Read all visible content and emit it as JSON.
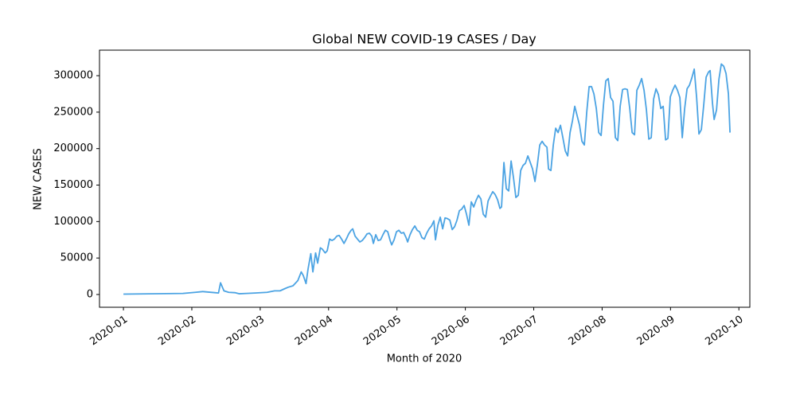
{
  "chart_data": {
    "type": "line",
    "title": "Global NEW COVID-19 CASES  / Day",
    "x_label": "Month of 2020",
    "y_label": "NEW CASES",
    "xlim": [
      0.65,
      10.16
    ],
    "ylim": [
      -17500,
      335000
    ],
    "xticks": [
      {
        "value": 1,
        "label": "2020-01"
      },
      {
        "value": 2,
        "label": "2020-02"
      },
      {
        "value": 3,
        "label": "2020-03"
      },
      {
        "value": 4,
        "label": "2020-04"
      },
      {
        "value": 5,
        "label": "2020-05"
      },
      {
        "value": 6,
        "label": "2020-06"
      },
      {
        "value": 7,
        "label": "2020-07"
      },
      {
        "value": 8,
        "label": "2020-08"
      },
      {
        "value": 9,
        "label": "2020-09"
      },
      {
        "value": 10,
        "label": "2020-10"
      }
    ],
    "yticks": [
      0,
      50000,
      100000,
      150000,
      200000,
      250000,
      300000
    ],
    "x": [
      1.0,
      1.87,
      2.05,
      2.16,
      2.34,
      2.39,
      2.42,
      2.47,
      2.54,
      2.63,
      2.69,
      2.8,
      2.92,
      3.1,
      3.21,
      3.29,
      3.36,
      3.41,
      3.48,
      3.55,
      3.6,
      3.63,
      3.67,
      3.7,
      3.74,
      3.77,
      3.81,
      3.84,
      3.88,
      3.91,
      3.95,
      3.98,
      4.015,
      4.05,
      4.085,
      4.12,
      4.155,
      4.19,
      4.225,
      4.259,
      4.294,
      4.329,
      4.353,
      4.388,
      4.422,
      4.457,
      4.492,
      4.527,
      4.562,
      4.597,
      4.632,
      4.655,
      4.69,
      4.725,
      4.76,
      4.795,
      4.83,
      4.865,
      4.9,
      4.923,
      4.958,
      4.993,
      5.028,
      5.063,
      5.098,
      5.133,
      5.156,
      5.191,
      5.226,
      5.261,
      5.296,
      5.33,
      5.365,
      5.4,
      5.435,
      5.47,
      5.505,
      5.54,
      5.563,
      5.598,
      5.633,
      5.668,
      5.703,
      5.738,
      5.773,
      5.808,
      5.843,
      5.878,
      5.913,
      5.947,
      5.982,
      6.017,
      6.052,
      6.087,
      6.122,
      6.157,
      6.192,
      6.227,
      6.262,
      6.297,
      6.332,
      6.367,
      6.401,
      6.436,
      6.471,
      6.506,
      6.529,
      6.564,
      6.599,
      6.634,
      6.669,
      6.704,
      6.739,
      6.774,
      6.809,
      6.844,
      6.879,
      6.914,
      6.949,
      6.983,
      7.018,
      7.053,
      7.088,
      7.123,
      7.158,
      7.193,
      7.216,
      7.251,
      7.286,
      7.321,
      7.356,
      7.391,
      7.426,
      7.461,
      7.496,
      7.531,
      7.566,
      7.6,
      7.635,
      7.67,
      7.705,
      7.74,
      7.775,
      7.81,
      7.845,
      7.88,
      7.915,
      7.95,
      7.985,
      8.02,
      8.054,
      8.089,
      8.124,
      8.159,
      8.194,
      8.229,
      8.264,
      8.299,
      8.334,
      8.369,
      8.404,
      8.439,
      8.474,
      8.508,
      8.543,
      8.578,
      8.613,
      8.648,
      8.683,
      8.718,
      8.753,
      8.788,
      8.823,
      8.858,
      8.893,
      8.928,
      8.962,
      8.997,
      9.032,
      9.067,
      9.102,
      9.137,
      9.172,
      9.207,
      9.242,
      9.277,
      9.312,
      9.347,
      9.382,
      9.416,
      9.451,
      9.486,
      9.521,
      9.556,
      9.579,
      9.614,
      9.638,
      9.673,
      9.708,
      9.743,
      9.778,
      9.812,
      9.847,
      9.87
    ],
    "series": [
      {
        "name": "NEW CASES",
        "color": "#4ba3e3",
        "values": [
          500,
          1500,
          3000,
          4000,
          2500,
          2000,
          16000,
          5000,
          3000,
          2500,
          1000,
          1500,
          2000,
          3000,
          5000,
          5000,
          8000,
          10000,
          12000,
          19000,
          31000,
          26000,
          15000,
          35000,
          56000,
          31000,
          57000,
          43000,
          64000,
          62000,
          57000,
          60000,
          76000,
          74000,
          76000,
          80000,
          81000,
          76000,
          70000,
          76000,
          83000,
          88000,
          90000,
          80000,
          76000,
          72000,
          74000,
          78000,
          83000,
          84000,
          80000,
          70000,
          82000,
          74000,
          75000,
          82000,
          88000,
          86000,
          74000,
          68000,
          75000,
          86000,
          88000,
          84000,
          85000,
          78000,
          72000,
          82000,
          89000,
          94000,
          88000,
          86000,
          78000,
          76000,
          84000,
          90000,
          94000,
          101000,
          75000,
          95000,
          106000,
          90000,
          105000,
          104000,
          102000,
          89000,
          93000,
          102000,
          115000,
          117000,
          122000,
          110000,
          95000,
          127000,
          120000,
          129000,
          136000,
          131000,
          110000,
          106000,
          128000,
          135000,
          141000,
          137000,
          130000,
          118000,
          120000,
          181000,
          145000,
          142000,
          183000,
          160000,
          133000,
          136000,
          170000,
          177000,
          180000,
          190000,
          181000,
          172000,
          155000,
          178000,
          205000,
          210000,
          205000,
          202000,
          172000,
          170000,
          205000,
          228000,
          222000,
          232000,
          215000,
          197000,
          190000,
          222000,
          238000,
          258000,
          245000,
          232000,
          210000,
          205000,
          250000,
          285000,
          285000,
          275000,
          255000,
          222000,
          218000,
          260000,
          293000,
          296000,
          270000,
          265000,
          215000,
          211000,
          258000,
          281000,
          282000,
          281000,
          255000,
          222000,
          219000,
          280000,
          287000,
          296000,
          280000,
          253000,
          213000,
          215000,
          268000,
          282000,
          274000,
          255000,
          258000,
          212000,
          214000,
          271000,
          280000,
          287000,
          280000,
          270000,
          215000,
          255000,
          282000,
          287000,
          297000,
          309000,
          270000,
          220000,
          226000,
          260000,
          298000,
          305000,
          307000,
          262000,
          240000,
          253000,
          295000,
          316000,
          313000,
          303000,
          275000,
          222000
        ]
      }
    ]
  }
}
